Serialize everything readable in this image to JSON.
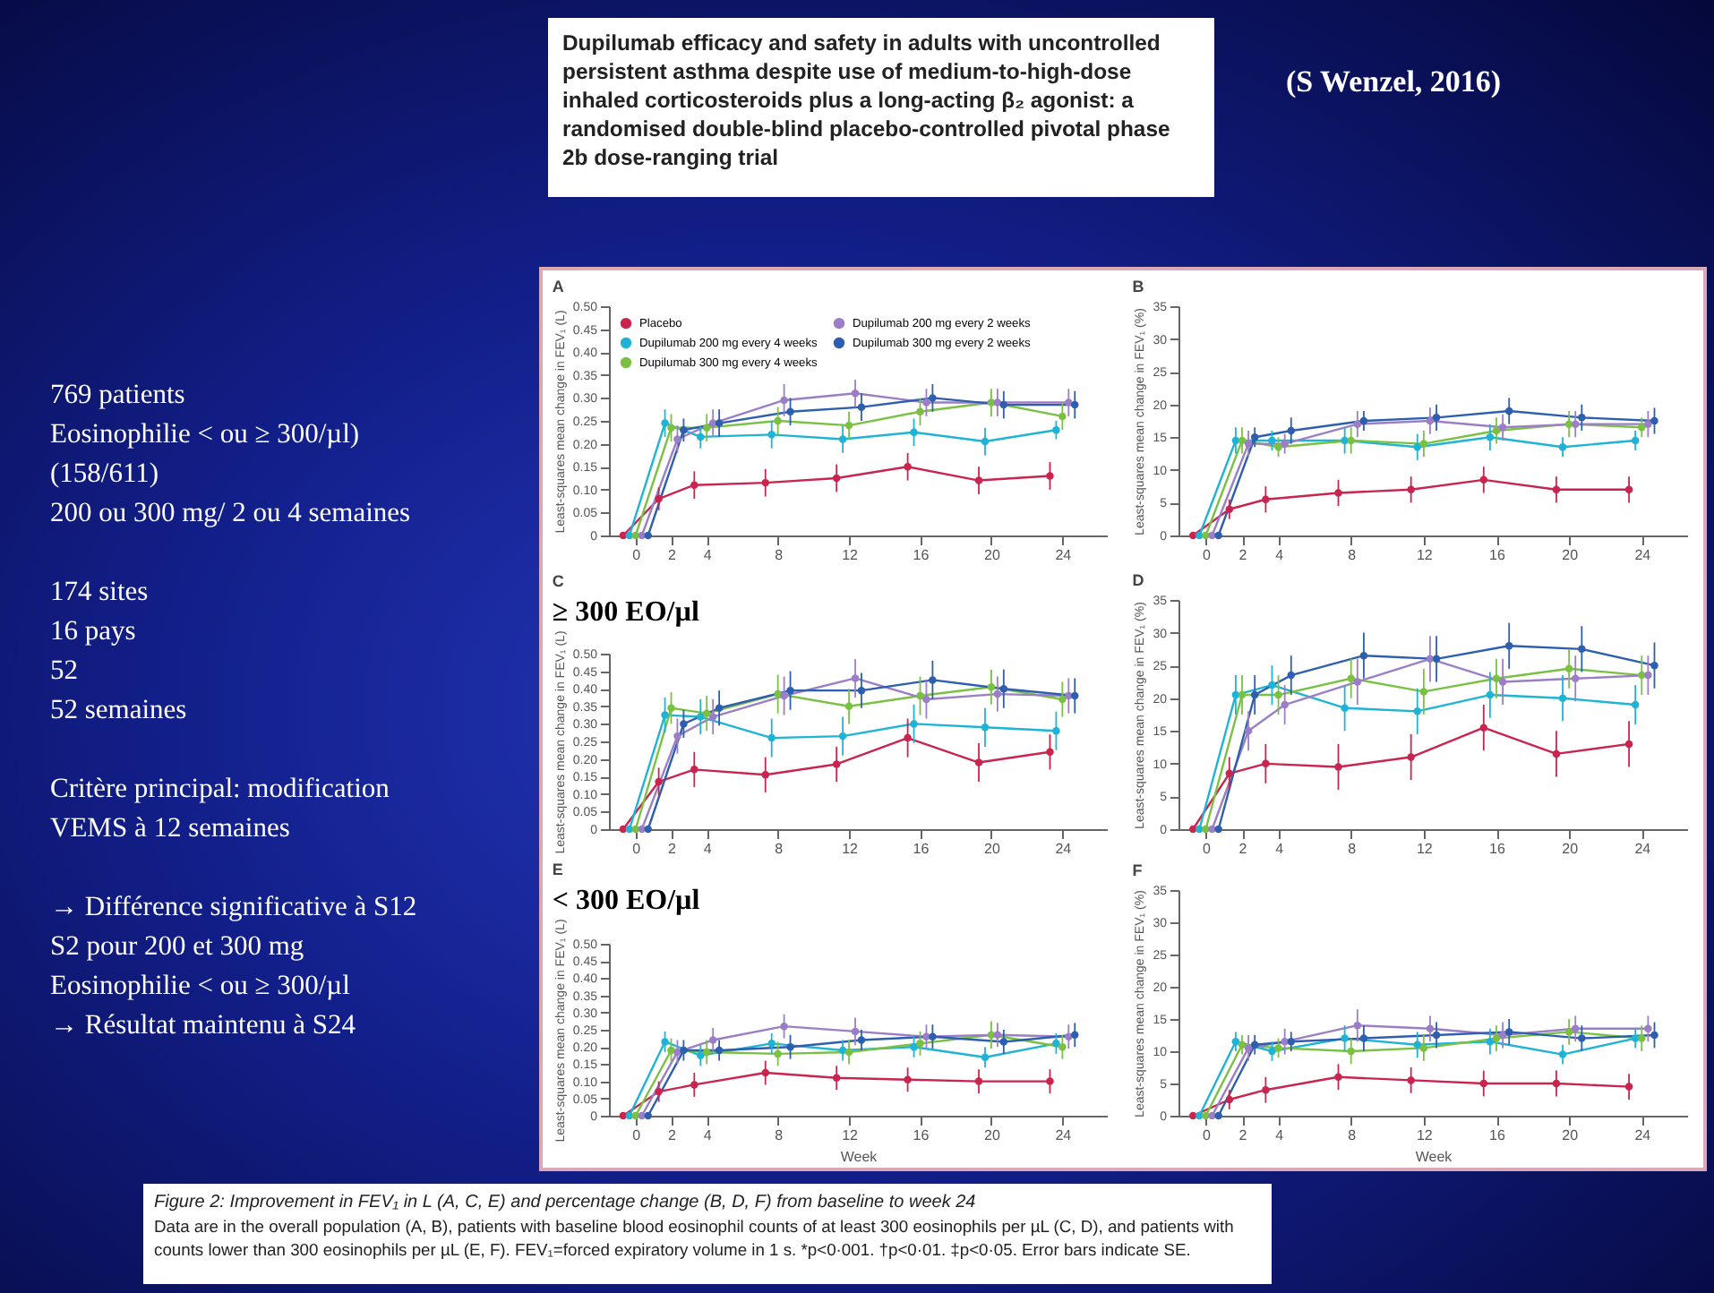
{
  "chart_data": [
    {
      "type": "other",
      "title": "Dupilumab efficacy and safety in adults with uncontrolled persistent asthma despite use of medium-to-high-dose inhaled corticosteroids plus a long-acting β₂ agonist: a randomised double-blind placebo-controlled pivotal phase 2b dose-ranging trial",
      "annotations": [
        "(S Wenzel, 2016)"
      ]
    },
    {
      "type": "other",
      "annotations": [
        "769 patients\nEosinophilie < ou ≥ 300/µl)\n(158/611)\n200 ou 300 mg/ 2 ou 4 semaines",
        "174 sites\n16 pays\n52\n52 semaines",
        "Critère principal: modification\nVEMS  à 12 semaines",
        "→  Différence significative à S12\nS2 pour 200 et 300 mg\nEosinophilie < ou ≥ 300/µl\n→ Résultat maintenu à S24"
      ]
    },
    {
      "type": "line",
      "title": "A",
      "ylabel": "Least-squares mean change in FEV₁ (L)",
      "legend": "top left",
      "marker": "circle",
      "xlim": [
        -1.5,
        26.5
      ],
      "xticks": [
        0,
        2,
        4,
        8,
        12,
        16,
        20,
        24
      ],
      "ylim": [
        0,
        0.5
      ],
      "yticks": [
        0,
        0.05,
        {
          "value": 0.1,
          "label": "0.10"
        },
        0.15,
        {
          "value": 0.2,
          "label": "0.20"
        },
        0.25,
        {
          "value": 0.3,
          "label": "0.30"
        },
        0.35,
        {
          "value": 0.4,
          "label": "0.40"
        },
        0.45,
        {
          "value": 0.5,
          "label": "0.50"
        }
      ],
      "series": [
        {
          "name": "Placebo",
          "color": "#c8254f",
          "x": [
            -0.7,
            1.3,
            3.3,
            7.3,
            11.3,
            15.3,
            19.3,
            23.3
          ],
          "values": [
            0,
            0.08,
            0.11,
            0.115,
            0.125,
            0.15,
            0.12,
            0.13
          ],
          "errors": [
            null,
            0.025,
            0.03,
            0.03,
            0.03,
            0.03,
            0.03,
            0.03
          ]
        },
        {
          "name": "Dupilumab 200 mg every 4 weeks",
          "color": "#1fb3d6",
          "x": [
            -0.35,
            1.65,
            3.65,
            7.65,
            11.65,
            15.65,
            19.65,
            23.65
          ],
          "values": [
            0,
            0.245,
            0.215,
            0.22,
            0.21,
            0.225,
            0.205,
            0.23
          ],
          "errors": [
            null,
            0.03,
            0.025,
            0.03,
            0.03,
            0.03,
            0.03,
            0.02
          ]
        },
        {
          "name": "Dupilumab 300 mg every 4 weeks",
          "color": "#7ac143",
          "x": [
            0,
            2,
            4,
            8,
            12,
            16,
            20,
            24
          ],
          "values": [
            0,
            0.235,
            0.235,
            0.25,
            0.24,
            0.27,
            0.29,
            0.26
          ],
          "errors": [
            null,
            0.03,
            0.03,
            0.03,
            0.03,
            0.03,
            0.03,
            0.03
          ]
        },
        {
          "name": "Dupilumab 200 mg every 2 weeks",
          "color": "#9b7fc6",
          "x": [
            0.35,
            2.35,
            4.35,
            8.35,
            12.35,
            16.35,
            20.35,
            24.35
          ],
          "values": [
            0,
            0.21,
            0.245,
            0.295,
            0.31,
            0.29,
            0.29,
            0.29
          ],
          "errors": [
            null,
            0.03,
            0.03,
            0.035,
            0.03,
            0.03,
            0.03,
            0.03
          ]
        },
        {
          "name": "Dupilumab 300 mg every 2 weeks",
          "color": "#2e5fae",
          "x": [
            0.7,
            2.7,
            4.7,
            8.7,
            12.7,
            16.7,
            20.7,
            24.7
          ],
          "values": [
            0,
            0.23,
            0.245,
            0.27,
            0.28,
            0.3,
            0.285,
            0.285
          ],
          "errors": [
            null,
            0.025,
            0.03,
            0.03,
            0.03,
            0.03,
            0.03,
            0.03
          ]
        }
      ]
    },
    {
      "type": "line",
      "title": "B",
      "ylabel": "Least-squares mean change in FEV₁ (%)",
      "marker": "circle",
      "xlim": [
        -1.5,
        26.5
      ],
      "xticks": [
        0,
        2,
        4,
        8,
        12,
        16,
        20,
        24
      ],
      "ylim": [
        0,
        35
      ],
      "yticks": [
        0,
        5,
        10,
        15,
        20,
        25,
        30,
        35
      ],
      "series": [
        {
          "color": "#c8254f",
          "x": [
            -0.7,
            1.3,
            3.3,
            7.3,
            11.3,
            15.3,
            19.3,
            23.3
          ],
          "values": [
            0,
            4,
            5.5,
            6.5,
            7,
            8.5,
            7,
            7
          ],
          "errors": [
            null,
            1.5,
            2,
            2,
            2,
            2,
            2,
            2
          ]
        },
        {
          "color": "#1fb3d6",
          "x": [
            -0.35,
            1.65,
            3.65,
            7.65,
            11.65,
            15.65,
            19.65,
            23.65
          ],
          "values": [
            0,
            14.5,
            14.5,
            14.5,
            13.5,
            15,
            13.5,
            14.5
          ],
          "errors": [
            null,
            2,
            1.5,
            2,
            2,
            2,
            1.5,
            1.5
          ]
        },
        {
          "color": "#7ac143",
          "x": [
            0,
            2,
            4,
            8,
            12,
            16,
            20,
            24
          ],
          "values": [
            0,
            14.5,
            13.5,
            14.5,
            14,
            16,
            17,
            16.5
          ],
          "errors": [
            null,
            2,
            1.5,
            2,
            2,
            2,
            2,
            1.5
          ]
        },
        {
          "color": "#9b7fc6",
          "x": [
            0.35,
            2.35,
            4.35,
            8.35,
            12.35,
            16.35,
            20.35,
            24.35
          ],
          "values": [
            0,
            14,
            14,
            17,
            17.5,
            16.5,
            17,
            17
          ],
          "errors": [
            null,
            2,
            1.5,
            2,
            2,
            2,
            2,
            2
          ]
        },
        {
          "color": "#2e5fae",
          "x": [
            0.7,
            2.7,
            4.7,
            8.7,
            12.7,
            16.7,
            20.7,
            24.7
          ],
          "values": [
            0,
            15,
            16,
            17.5,
            18,
            19,
            18,
            17.5
          ],
          "errors": [
            null,
            1.5,
            2,
            1.5,
            2,
            2,
            2,
            2
          ]
        }
      ]
    },
    {
      "type": "line",
      "title": "C",
      "subtitle": "≥ 300 EO/µl",
      "ylabel": "Least-squares mean change in FEV₁ (L)",
      "marker": "circle",
      "xlim": [
        -1.5,
        26.5
      ],
      "xticks": [
        0,
        2,
        4,
        8,
        12,
        16,
        20,
        24
      ],
      "ylim": [
        0,
        0.5
      ],
      "yticks": [
        0,
        0.05,
        {
          "value": 0.1,
          "label": "0.10"
        },
        0.15,
        {
          "value": 0.2,
          "label": "0.20"
        },
        0.25,
        {
          "value": 0.3,
          "label": "0.30"
        },
        0.35,
        {
          "value": 0.4,
          "label": "0.40"
        },
        0.45,
        {
          "value": 0.5,
          "label": "0.50"
        }
      ],
      "series": [
        {
          "color": "#c8254f",
          "x": [
            -0.7,
            1.3,
            3.3,
            7.3,
            11.3,
            15.3,
            19.3,
            23.3
          ],
          "values": [
            0,
            0.135,
            0.17,
            0.155,
            0.185,
            0.26,
            0.19,
            0.22
          ],
          "errors": [
            null,
            0.04,
            0.05,
            0.05,
            0.05,
            0.055,
            0.055,
            0.05
          ]
        },
        {
          "color": "#1fb3d6",
          "x": [
            -0.35,
            1.65,
            3.65,
            7.65,
            11.65,
            15.65,
            19.65,
            23.65
          ],
          "values": [
            0,
            0.325,
            0.32,
            0.26,
            0.265,
            0.3,
            0.29,
            0.28
          ],
          "errors": [
            null,
            0.05,
            0.05,
            0.055,
            0.055,
            0.055,
            0.055,
            0.055
          ]
        },
        {
          "color": "#7ac143",
          "x": [
            0,
            2,
            4,
            8,
            12,
            16,
            20,
            24
          ],
          "values": [
            0,
            0.345,
            0.33,
            0.385,
            0.35,
            0.38,
            0.405,
            0.37
          ],
          "errors": [
            null,
            0.045,
            0.05,
            0.055,
            0.05,
            0.055,
            0.05,
            0.05
          ]
        },
        {
          "color": "#9b7fc6",
          "x": [
            0.35,
            2.35,
            4.35,
            8.35,
            12.35,
            16.35,
            20.35,
            24.35
          ],
          "values": [
            0,
            0.265,
            0.32,
            0.38,
            0.43,
            0.37,
            0.385,
            0.38
          ],
          "errors": [
            null,
            0.05,
            0.05,
            0.055,
            0.055,
            0.055,
            0.05,
            0.05
          ]
        },
        {
          "color": "#2e5fae",
          "x": [
            0.7,
            2.7,
            4.7,
            8.7,
            12.7,
            16.7,
            20.7,
            24.7
          ],
          "values": [
            0,
            0.3,
            0.345,
            0.395,
            0.395,
            0.425,
            0.4,
            0.38
          ],
          "errors": [
            null,
            0.04,
            0.05,
            0.055,
            0.05,
            0.055,
            0.055,
            0.05
          ]
        }
      ]
    },
    {
      "type": "line",
      "title": "D",
      "ylabel": "Least-squares mean change in FEV₁ (%)",
      "marker": "circle",
      "xlim": [
        -1.5,
        26.5
      ],
      "xticks": [
        0,
        2,
        4,
        8,
        12,
        16,
        20,
        24
      ],
      "ylim": [
        0,
        35
      ],
      "yticks": [
        0,
        5,
        10,
        15,
        20,
        25,
        30,
        35
      ],
      "series": [
        {
          "color": "#c8254f",
          "x": [
            -0.7,
            1.3,
            3.3,
            7.3,
            11.3,
            15.3,
            19.3,
            23.3
          ],
          "values": [
            0,
            8.5,
            10,
            9.5,
            11,
            15.5,
            11.5,
            13
          ],
          "errors": [
            null,
            2.5,
            3,
            3.5,
            3.5,
            3.5,
            3.5,
            3.5
          ]
        },
        {
          "color": "#1fb3d6",
          "x": [
            -0.35,
            1.65,
            3.65,
            7.65,
            11.65,
            15.65,
            19.65,
            23.65
          ],
          "values": [
            0,
            20.5,
            22,
            18.5,
            18,
            20.5,
            20,
            19
          ],
          "errors": [
            null,
            3,
            3,
            3.5,
            3.5,
            3.5,
            3.5,
            3
          ]
        },
        {
          "color": "#7ac143",
          "x": [
            0,
            2,
            4,
            8,
            12,
            16,
            20,
            24
          ],
          "values": [
            0,
            20.5,
            20.5,
            23,
            21,
            23,
            24.5,
            23.5
          ],
          "errors": [
            null,
            3,
            3,
            3,
            3.5,
            3,
            3,
            3
          ]
        },
        {
          "color": "#9b7fc6",
          "x": [
            0.35,
            2.35,
            4.35,
            8.35,
            12.35,
            16.35,
            20.35,
            24.35
          ],
          "values": [
            0,
            15,
            19,
            22.5,
            26,
            22.5,
            23,
            23.5
          ],
          "errors": [
            null,
            3,
            3,
            3.5,
            3.5,
            3.5,
            3.5,
            3
          ]
        },
        {
          "color": "#2e5fae",
          "x": [
            0.7,
            2.7,
            4.7,
            8.7,
            12.7,
            16.7,
            20.7,
            24.7
          ],
          "values": [
            0,
            20.5,
            23.5,
            26.5,
            26,
            28,
            27.5,
            25
          ],
          "errors": [
            null,
            3,
            3,
            3.5,
            3.5,
            3.5,
            3.5,
            3.5
          ]
        }
      ]
    },
    {
      "type": "line",
      "title": "E",
      "subtitle": "< 300 EO/µl",
      "xlabel": "Week",
      "ylabel": "Least-squares mean change in FEV₁ (L)",
      "marker": "circle",
      "xlim": [
        -1.5,
        26.5
      ],
      "xticks": [
        0,
        2,
        4,
        8,
        12,
        16,
        20,
        24
      ],
      "ylim": [
        0,
        0.5
      ],
      "yticks": [
        0,
        0.05,
        {
          "value": 0.1,
          "label": "0.10"
        },
        0.15,
        {
          "value": 0.2,
          "label": "0.20"
        },
        0.25,
        {
          "value": 0.3,
          "label": "0.30"
        },
        0.35,
        {
          "value": 0.4,
          "label": "0.40"
        },
        0.45,
        {
          "value": 0.5,
          "label": "0.50"
        }
      ],
      "series": [
        {
          "color": "#c8254f",
          "x": [
            -0.7,
            1.3,
            3.3,
            7.3,
            11.3,
            15.3,
            19.3,
            23.3
          ],
          "values": [
            0,
            0.07,
            0.09,
            0.125,
            0.11,
            0.105,
            0.1,
            0.1
          ],
          "errors": [
            null,
            0.03,
            0.035,
            0.035,
            0.035,
            0.035,
            0.035,
            0.035
          ]
        },
        {
          "color": "#1fb3d6",
          "x": [
            -0.35,
            1.65,
            3.65,
            7.65,
            11.65,
            15.65,
            19.65,
            23.65
          ],
          "values": [
            0,
            0.215,
            0.175,
            0.21,
            0.19,
            0.2,
            0.17,
            0.21
          ],
          "errors": [
            null,
            0.03,
            0.03,
            0.03,
            0.03,
            0.03,
            0.03,
            0.03
          ]
        },
        {
          "color": "#7ac143",
          "x": [
            0,
            2,
            4,
            8,
            12,
            16,
            20,
            24
          ],
          "values": [
            0,
            0.19,
            0.185,
            0.18,
            0.185,
            0.21,
            0.235,
            0.2
          ],
          "errors": [
            null,
            0.035,
            0.035,
            0.035,
            0.035,
            0.035,
            0.04,
            0.035
          ]
        },
        {
          "color": "#9b7fc6",
          "x": [
            0.35,
            2.35,
            4.35,
            8.35,
            12.35,
            16.35,
            20.35,
            24.35
          ],
          "values": [
            0,
            0.185,
            0.22,
            0.26,
            0.245,
            0.23,
            0.235,
            0.23
          ],
          "errors": [
            null,
            0.035,
            0.035,
            0.035,
            0.04,
            0.035,
            0.035,
            0.035
          ]
        },
        {
          "color": "#2e5fae",
          "x": [
            0.7,
            2.7,
            4.7,
            8.7,
            12.7,
            16.7,
            20.7,
            24.7
          ],
          "values": [
            0,
            0.19,
            0.19,
            0.2,
            0.22,
            0.23,
            0.215,
            0.235
          ],
          "errors": [
            null,
            0.03,
            0.03,
            0.035,
            0.03,
            0.035,
            0.035,
            0.035
          ]
        }
      ]
    },
    {
      "type": "line",
      "title": "F",
      "xlabel": "Week",
      "ylabel": "Least-squares mean change in FEV₁ (%)",
      "marker": "circle",
      "xlim": [
        -1.5,
        26.5
      ],
      "xticks": [
        0,
        2,
        4,
        8,
        12,
        16,
        20,
        24
      ],
      "ylim": [
        0,
        35
      ],
      "yticks": [
        0,
        5,
        10,
        15,
        20,
        25,
        30,
        35
      ],
      "series": [
        {
          "color": "#c8254f",
          "x": [
            -0.7,
            1.3,
            3.3,
            7.3,
            11.3,
            15.3,
            19.3,
            23.3
          ],
          "values": [
            0,
            2.5,
            4,
            6,
            5.5,
            5,
            5,
            4.5
          ],
          "errors": [
            null,
            1.5,
            2,
            2,
            2,
            2,
            2,
            2
          ]
        },
        {
          "color": "#1fb3d6",
          "x": [
            -0.35,
            1.65,
            3.65,
            7.65,
            11.65,
            15.65,
            19.65,
            23.65
          ],
          "values": [
            0,
            11.5,
            10,
            12,
            11,
            11.5,
            9.5,
            12
          ],
          "errors": [
            null,
            1.5,
            1.5,
            2,
            2,
            2,
            1.5,
            1.5
          ]
        },
        {
          "color": "#7ac143",
          "x": [
            0,
            2,
            4,
            8,
            12,
            16,
            20,
            24
          ],
          "values": [
            0,
            11,
            10.5,
            10,
            10.5,
            12,
            13,
            12
          ],
          "errors": [
            null,
            1.5,
            1.5,
            2,
            2,
            2,
            2,
            2
          ]
        },
        {
          "color": "#9b7fc6",
          "x": [
            0.35,
            2.35,
            4.35,
            8.35,
            12.35,
            16.35,
            20.35,
            24.35
          ],
          "values": [
            0,
            10.5,
            11.5,
            14,
            13.5,
            12.5,
            13.5,
            13.5
          ],
          "errors": [
            null,
            2,
            2,
            2.5,
            2,
            2,
            2,
            2
          ]
        },
        {
          "color": "#2e5fae",
          "x": [
            0.7,
            2.7,
            4.7,
            8.7,
            12.7,
            16.7,
            20.7,
            24.7
          ],
          "values": [
            0,
            11,
            11.5,
            12,
            12.5,
            13,
            12,
            12.5
          ],
          "errors": [
            null,
            1.5,
            1.5,
            2,
            2,
            2,
            2,
            2
          ]
        }
      ]
    },
    {
      "type": "other",
      "title": "Figure 2: Improvement in FEV₁ in L (A, C, E) and percentage change (B, D, F) from baseline to week 24",
      "annotations": [
        "Data are in the overall population (A, B), patients with baseline blood eosinophil counts of at least 300 eosinophils per µL (C, D), and patients with counts lower than 300 eosinophils per µL (E, F). FEV₁=forced expiratory volume in 1 s. *p<0·001. †p<0·01. ‡p<0·05. Error bars indicate SE."
      ]
    }
  ]
}
